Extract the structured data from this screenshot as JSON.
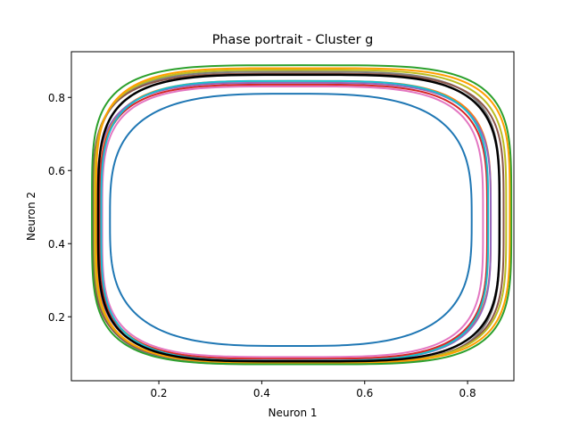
{
  "chart_data": {
    "type": "line",
    "title": "Phase portrait - Cluster g",
    "xlabel": "Neuron 1",
    "ylabel": "Neuron 2",
    "xlim": [
      0.03,
      0.89
    ],
    "ylim": [
      0.025,
      0.925
    ],
    "xticks": [
      0.2,
      0.4,
      0.6,
      0.8
    ],
    "yticks": [
      0.2,
      0.4,
      0.6,
      0.8
    ],
    "xtick_labels": [
      "0.2",
      "0.4",
      "0.6",
      "0.8"
    ],
    "ytick_labels": [
      "0.2",
      "0.4",
      "0.6",
      "0.8"
    ],
    "grid": false,
    "legend": "none",
    "series": [
      {
        "color": "#1f77b4",
        "cycle": {
          "xmin": 0.105,
          "xmax": 0.808,
          "ymin": 0.12,
          "ymax": 0.81,
          "exponent": 3.2
        }
      },
      {
        "color": "#ff7f0e",
        "cycle": {
          "xmin": 0.085,
          "xmax": 0.845,
          "ymin": 0.085,
          "ymax": 0.845,
          "exponent": 4.0
        }
      },
      {
        "color": "#e377c2",
        "cycle": {
          "xmin": 0.09,
          "xmax": 0.83,
          "ymin": 0.09,
          "ymax": 0.83,
          "exponent": 4.0
        }
      },
      {
        "color": "#d62728",
        "cycle": {
          "xmin": 0.085,
          "xmax": 0.838,
          "ymin": 0.085,
          "ymax": 0.835,
          "exponent": 4.0
        }
      },
      {
        "color": "#9467bd",
        "cycle": {
          "xmin": 0.08,
          "xmax": 0.845,
          "ymin": 0.08,
          "ymax": 0.84,
          "exponent": 4.0
        }
      },
      {
        "color": "#7f7f7f",
        "cycle": {
          "xmin": 0.075,
          "xmax": 0.862,
          "ymin": 0.07,
          "ymax": 0.87,
          "exponent": 4.2
        }
      },
      {
        "color": "#8c564b",
        "cycle": {
          "xmin": 0.072,
          "xmax": 0.87,
          "ymin": 0.075,
          "ymax": 0.865,
          "exponent": 4.2
        }
      },
      {
        "color": "#bcbd22",
        "cycle": {
          "xmin": 0.075,
          "xmax": 0.875,
          "ymin": 0.075,
          "ymax": 0.875,
          "exponent": 4.2
        }
      },
      {
        "color": "#17becf",
        "cycle": {
          "xmin": 0.088,
          "xmax": 0.84,
          "ymin": 0.08,
          "ymax": 0.845,
          "exponent": 4.0
        }
      },
      {
        "color": "#2ca02c",
        "cycle": {
          "xmin": 0.07,
          "xmax": 0.885,
          "ymin": 0.07,
          "ymax": 0.888,
          "exponent": 4.4
        }
      },
      {
        "color": "#ff9f00",
        "cycle": {
          "xmin": 0.078,
          "xmax": 0.882,
          "ymin": 0.075,
          "ymax": 0.88,
          "exponent": 4.3
        }
      },
      {
        "color": "#000000",
        "cycle": {
          "xmin": 0.082,
          "xmax": 0.862,
          "ymin": 0.078,
          "ymax": 0.862,
          "exponent": 4.1
        }
      }
    ]
  }
}
